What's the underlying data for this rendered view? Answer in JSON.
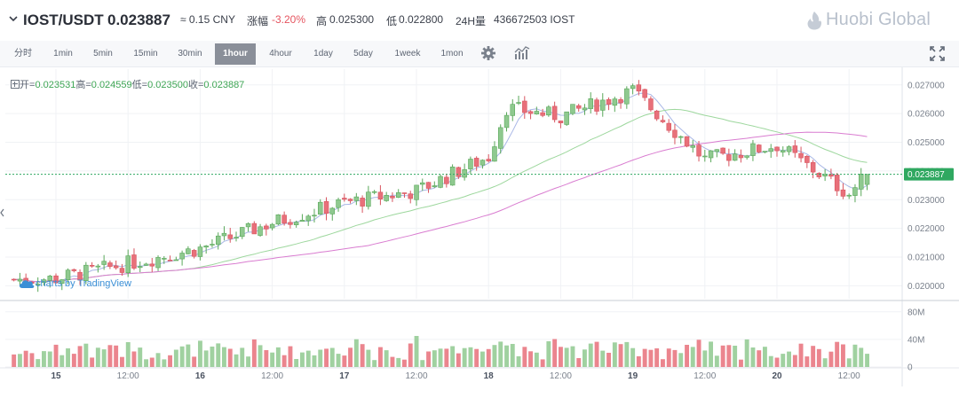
{
  "header": {
    "pair": "IOST/USDT",
    "last_price": "0.023887",
    "cny": "≈ 0.15 CNY",
    "change_label": "涨幅",
    "change_value": "-3.20%",
    "high_label": "高",
    "high_value": "0.025300",
    "low_label": "低",
    "low_value": "0.022800",
    "volume_label": "24H量",
    "volume_value": "436672503 IOST",
    "brand": "Huobi Global"
  },
  "toolbar": {
    "intervals": [
      "分时",
      "1min",
      "5min",
      "15min",
      "30min",
      "1hour",
      "4hour",
      "1day",
      "5day",
      "1week",
      "1mon"
    ],
    "active": "1hour"
  },
  "ohlc": {
    "open_label": "开=",
    "open_value": "0.023531",
    "high_label": "高=",
    "high_value": "0.024559",
    "low_label": "低=",
    "low_value": "0.023500",
    "close_label": "收=",
    "close_value": "0.023887"
  },
  "watermark": "charts by TradingView",
  "colors": {
    "up": "#8fc98f",
    "down": "#e8707a",
    "ma_short": "#a9b7e6",
    "ma_mid": "#9dd79d",
    "ma_long": "#d97cd0",
    "last_price_line": "#2fa860",
    "last_price_badge": "#2fa860"
  },
  "chart_data": {
    "type": "candlestick",
    "price_axis": {
      "ticks": [
        "0.027000",
        "0.026000",
        "0.025000",
        "0.024000",
        "0.023000",
        "0.022000",
        "0.021000",
        "0.020000"
      ],
      "ylim": [
        0.01955,
        0.02755
      ],
      "last_price": "0.023887"
    },
    "volume_axis": {
      "ticks": [
        "80M",
        "40M",
        "0"
      ],
      "ylim": [
        0,
        90
      ]
    },
    "x_axis": {
      "ticks": [
        "15",
        "12:00",
        "16",
        "12:00",
        "17",
        "12:00",
        "18",
        "12:00",
        "19",
        "12:00",
        "20",
        "12:00"
      ],
      "day_ticks": [
        "15",
        "16",
        "17",
        "18",
        "19",
        "20"
      ]
    },
    "series_description": "Hourly OHLC candles for IOST/USDT over 15–20, with volume bars and three moving averages",
    "key_points": [
      {
        "x": "15 00:00",
        "close": 0.02025
      },
      {
        "x": "16 00:00",
        "close": 0.0213
      },
      {
        "x": "16 12:00",
        "close": 0.0222
      },
      {
        "x": "17 00:00",
        "close": 0.0229
      },
      {
        "x": "17 12:00",
        "close": 0.0233
      },
      {
        "x": "18 00:00",
        "close": 0.0245
      },
      {
        "x": "18 03:00",
        "close": 0.0262
      },
      {
        "x": "18 12:00",
        "close": 0.0259
      },
      {
        "x": "19 00:00",
        "close": 0.0268
      },
      {
        "x": "19 12:00",
        "close": 0.0244
      },
      {
        "x": "20 00:00",
        "close": 0.0249
      },
      {
        "x": "20 12:00",
        "close": 0.0232
      },
      {
        "x": "20 15:00",
        "close": 0.023887
      }
    ]
  }
}
